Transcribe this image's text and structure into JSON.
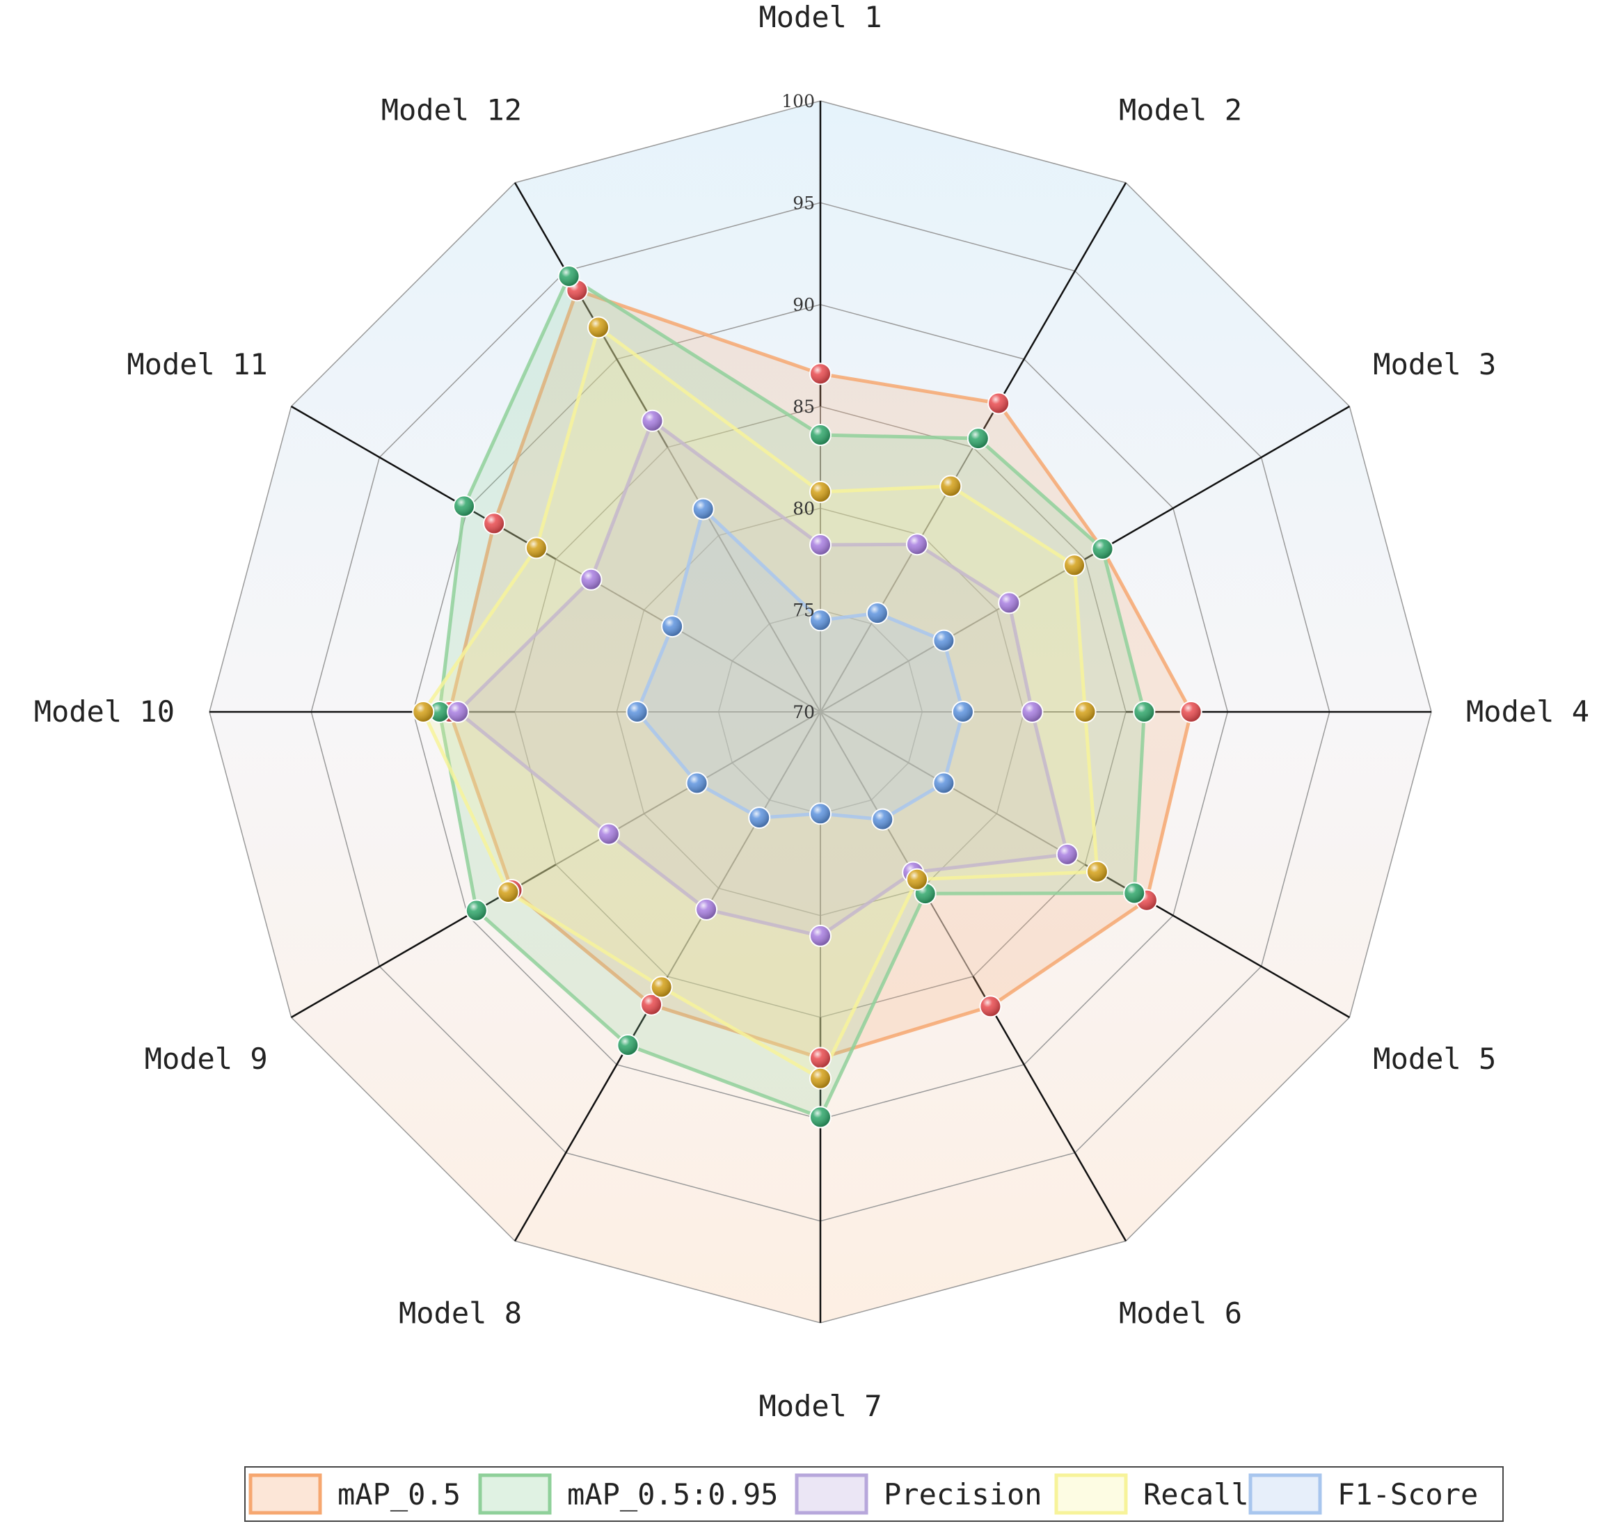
{
  "chart_data": {
    "type": "radar",
    "axes": [
      "Model 1",
      "Model 2",
      "Model 3",
      "Model 4",
      "Model 5",
      "Model 6",
      "Model 7",
      "Model 8",
      "Model 9",
      "Model 10",
      "Model 11",
      "Model 12"
    ],
    "rlim": [
      70,
      100
    ],
    "ticks": [
      70,
      75,
      80,
      85,
      90,
      95,
      100
    ],
    "grid": true,
    "legend_position": "bottom",
    "series": [
      {
        "name": "mAP_0.5",
        "color": "#e84a4e",
        "fill": "#f6a770",
        "values": [
          86.6,
          87.5,
          86.0,
          88.2,
          88.5,
          86.7,
          87.0,
          86.6,
          87.5,
          88.2,
          88.5,
          93.9
        ]
      },
      {
        "name": "mAP_0.5:0.95",
        "color": "#2fa66a",
        "fill": "#8fd09a",
        "values": [
          83.6,
          85.5,
          86.0,
          85.9,
          87.8,
          80.3,
          89.9,
          88.9,
          89.5,
          88.7,
          90.2,
          94.7
        ]
      },
      {
        "name": "Precision",
        "color": "#a77de0",
        "fill": "#b7a7db",
        "values": [
          78.2,
          79.5,
          80.7,
          80.4,
          84.0,
          79.1,
          81.0,
          81.2,
          82.0,
          87.8,
          83.0,
          86.5
        ]
      },
      {
        "name": "Recall",
        "color": "#d4a017",
        "fill": "#f7f39a",
        "values": [
          80.8,
          82.8,
          84.4,
          83.0,
          85.7,
          79.5,
          88.0,
          85.6,
          87.7,
          89.5,
          86.1,
          91.8
        ]
      },
      {
        "name": "F1-Score",
        "color": "#5d93de",
        "fill": "#a8c6ee",
        "values": [
          74.5,
          75.6,
          77.0,
          77.0,
          77.0,
          76.1,
          75.0,
          76.0,
          77.0,
          79.0,
          78.4,
          81.5
        ]
      }
    ]
  }
}
